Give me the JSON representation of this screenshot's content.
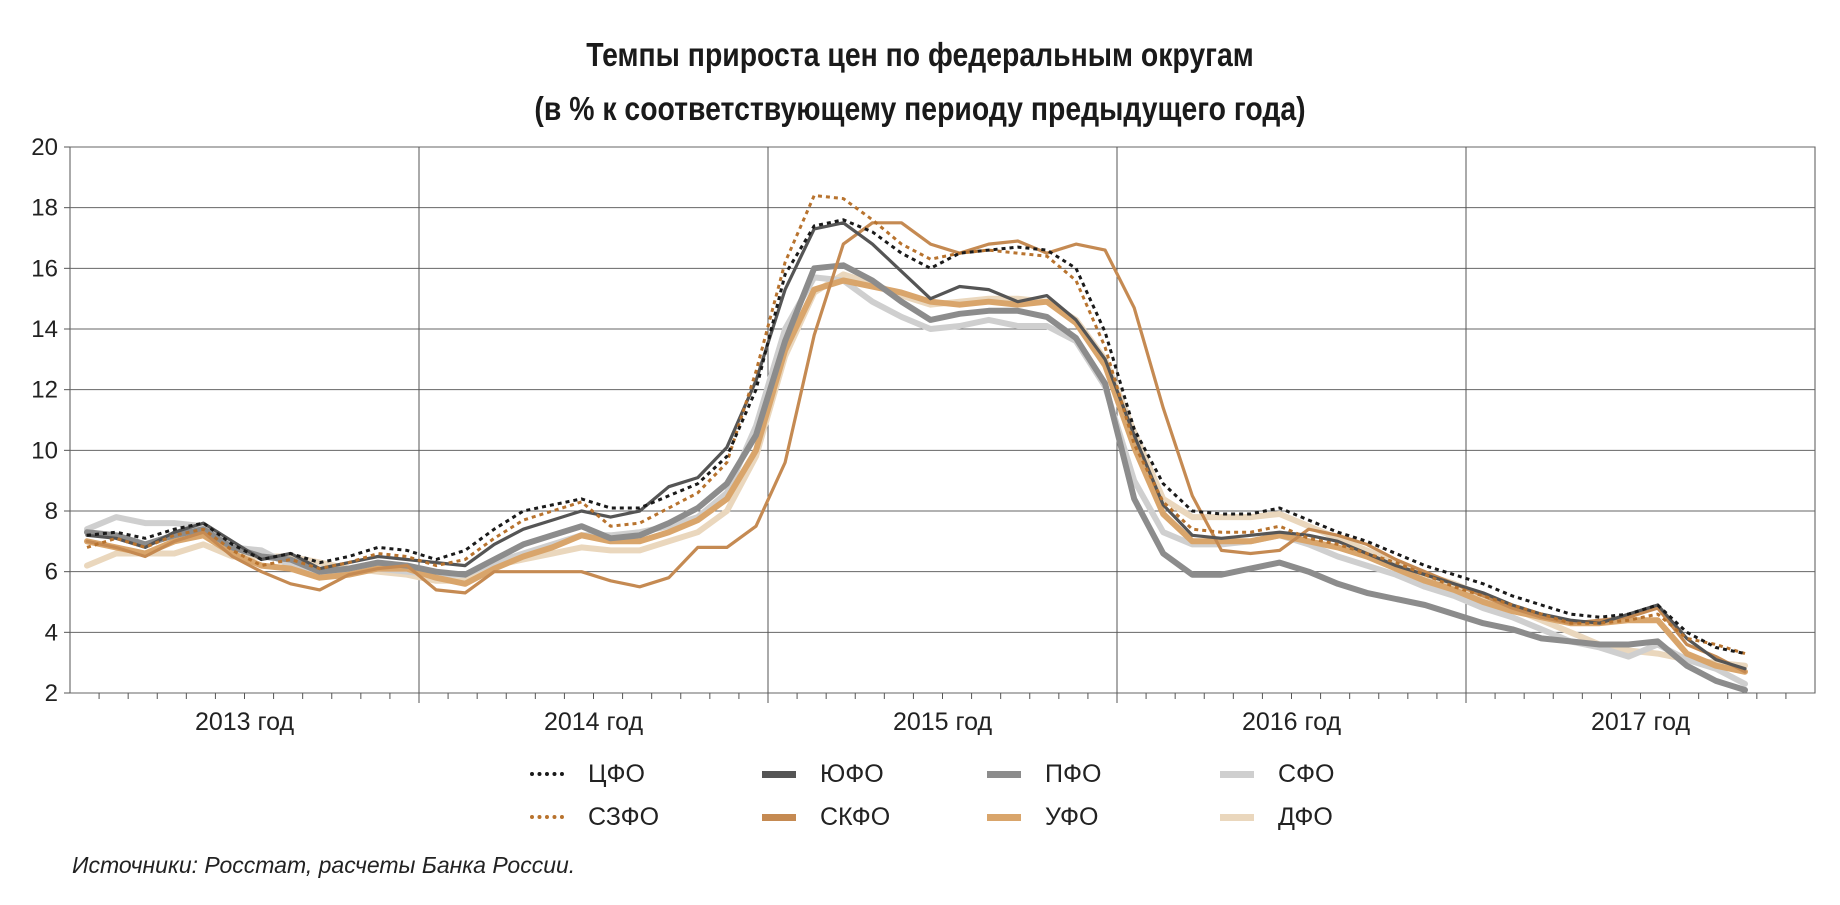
{
  "title_lines": [
    "Темпы прироста цен по федеральным округам",
    "(в % к соответствующему периоду предыдущего года)"
  ],
  "source": "Источники: Росстат, расчеты Банка России.",
  "chart_data": {
    "type": "line",
    "title": "Темпы прироста цен по федеральным округам (в % к соответствующему периоду предыдущего года)",
    "ylabel": "",
    "xlabel": "",
    "ylim": [
      2,
      20
    ],
    "y_ticks": [
      2,
      4,
      6,
      8,
      10,
      12,
      14,
      16,
      18,
      20
    ],
    "y_tick_labels": [
      "2",
      "4",
      "6",
      "8",
      "10",
      "12",
      "14",
      "16",
      "18",
      "20"
    ],
    "grid": true,
    "legend_position": "bottom",
    "x_months": [
      "2013-01",
      "2013-02",
      "2013-03",
      "2013-04",
      "2013-05",
      "2013-06",
      "2013-07",
      "2013-08",
      "2013-09",
      "2013-10",
      "2013-11",
      "2013-12",
      "2014-01",
      "2014-02",
      "2014-03",
      "2014-04",
      "2014-05",
      "2014-06",
      "2014-07",
      "2014-08",
      "2014-09",
      "2014-10",
      "2014-11",
      "2014-12",
      "2015-01",
      "2015-02",
      "2015-03",
      "2015-04",
      "2015-05",
      "2015-06",
      "2015-07",
      "2015-08",
      "2015-09",
      "2015-10",
      "2015-11",
      "2015-12",
      "2016-01",
      "2016-02",
      "2016-03",
      "2016-04",
      "2016-05",
      "2016-06",
      "2016-07",
      "2016-08",
      "2016-09",
      "2016-10",
      "2016-11",
      "2016-12",
      "2017-01",
      "2017-02",
      "2017-03",
      "2017-04",
      "2017-05",
      "2017-06",
      "2017-07",
      "2017-08",
      "2017-09",
      "2017-10"
    ],
    "year_labels": [
      "2013 год",
      "2014 год",
      "2015 год",
      "2016 год",
      "2017 год"
    ],
    "series": [
      {
        "name": "ЦФО",
        "color": "#1a1a1a",
        "style": "dotted",
        "values": [
          7.2,
          7.3,
          7.1,
          7.4,
          7.6,
          6.9,
          6.4,
          6.6,
          6.3,
          6.5,
          6.8,
          6.7,
          6.4,
          6.7,
          7.4,
          8.0,
          8.2,
          8.4,
          8.1,
          8.1,
          8.5,
          8.9,
          9.8,
          12.0,
          15.8,
          17.4,
          17.6,
          17.2,
          16.5,
          16.0,
          16.5,
          16.6,
          16.7,
          16.6,
          16.0,
          13.9,
          10.7,
          8.9,
          8.0,
          7.9,
          7.9,
          8.1,
          7.7,
          7.3,
          7.0,
          6.6,
          6.2,
          5.9,
          5.6,
          5.2,
          4.9,
          4.6,
          4.5,
          4.6,
          4.9,
          4.0,
          3.5,
          3.3
        ]
      },
      {
        "name": "СЗФО",
        "color": "#b8732e",
        "style": "dotted",
        "values": [
          6.8,
          7.1,
          6.8,
          7.2,
          7.4,
          6.7,
          6.2,
          6.4,
          6.1,
          6.3,
          6.6,
          6.5,
          6.2,
          6.4,
          7.1,
          7.7,
          8.0,
          8.3,
          7.5,
          7.6,
          8.1,
          8.6,
          9.6,
          12.6,
          16.2,
          18.4,
          18.3,
          17.6,
          16.8,
          16.3,
          16.5,
          16.6,
          16.5,
          16.4,
          15.6,
          13.4,
          10.2,
          8.3,
          7.4,
          7.3,
          7.3,
          7.5,
          7.1,
          6.9,
          6.6,
          6.3,
          5.9,
          5.5,
          5.2,
          4.9,
          4.6,
          4.3,
          4.3,
          4.4,
          4.6,
          3.8,
          3.6,
          3.3
        ]
      },
      {
        "name": "ЮФО",
        "color": "#555555",
        "style": "solid",
        "values": [
          7.2,
          7.1,
          6.8,
          7.3,
          7.6,
          7.0,
          6.4,
          6.6,
          6.1,
          6.3,
          6.5,
          6.4,
          6.3,
          6.2,
          6.9,
          7.4,
          7.7,
          8.0,
          7.8,
          8.0,
          8.8,
          9.1,
          10.1,
          12.3,
          15.3,
          17.3,
          17.5,
          16.8,
          15.9,
          15.0,
          15.4,
          15.3,
          14.9,
          15.1,
          14.3,
          13.0,
          10.5,
          8.2,
          7.2,
          7.1,
          7.2,
          7.3,
          7.2,
          7.0,
          6.6,
          6.2,
          5.9,
          5.6,
          5.3,
          4.9,
          4.6,
          4.4,
          4.3,
          4.6,
          4.9,
          3.8,
          3.1,
          2.8
        ]
      },
      {
        "name": "СКФО",
        "color": "#c58a52",
        "style": "solid",
        "values": [
          7.0,
          6.8,
          6.5,
          7.0,
          7.3,
          6.5,
          6.0,
          5.6,
          5.4,
          5.9,
          6.1,
          6.2,
          5.4,
          5.3,
          6.0,
          6.0,
          6.0,
          6.0,
          5.7,
          5.5,
          5.8,
          6.8,
          6.8,
          7.5,
          9.6,
          13.8,
          16.8,
          17.5,
          17.5,
          16.8,
          16.5,
          16.8,
          16.9,
          16.5,
          16.8,
          16.6,
          14.7,
          11.4,
          8.5,
          6.7,
          6.6,
          6.7,
          7.4,
          7.2,
          6.9,
          6.4,
          6.0,
          5.6,
          5.2,
          4.8,
          4.5,
          4.3,
          4.4,
          4.5,
          4.8,
          3.6,
          3.2,
          2.7
        ]
      },
      {
        "name": "ПФО",
        "color": "#8c8c8c",
        "style": "solid",
        "values": [
          7.3,
          7.2,
          6.9,
          7.2,
          7.4,
          6.8,
          6.5,
          6.4,
          6.0,
          6.1,
          6.3,
          6.2,
          6.0,
          5.9,
          6.4,
          6.9,
          7.2,
          7.5,
          7.1,
          7.2,
          7.6,
          8.1,
          8.9,
          10.5,
          13.6,
          16.0,
          16.1,
          15.6,
          14.9,
          14.3,
          14.5,
          14.6,
          14.6,
          14.4,
          13.7,
          12.2,
          8.4,
          6.6,
          5.9,
          5.9,
          6.1,
          6.3,
          6.0,
          5.6,
          5.3,
          5.1,
          4.9,
          4.6,
          4.3,
          4.1,
          3.8,
          3.7,
          3.6,
          3.6,
          3.7,
          2.9,
          2.4,
          2.1
        ]
      },
      {
        "name": "УФО",
        "color": "#d9a56b",
        "style": "solid",
        "values": [
          7.0,
          6.8,
          6.6,
          7.0,
          7.2,
          6.6,
          6.2,
          6.1,
          5.8,
          5.9,
          6.1,
          6.1,
          5.8,
          5.6,
          6.1,
          6.5,
          6.8,
          7.2,
          7.0,
          7.0,
          7.3,
          7.7,
          8.4,
          10.0,
          13.3,
          15.3,
          15.6,
          15.4,
          15.2,
          14.9,
          14.8,
          14.9,
          14.8,
          14.9,
          14.2,
          12.8,
          10.1,
          7.9,
          7.0,
          7.0,
          7.0,
          7.2,
          7.0,
          6.8,
          6.5,
          6.1,
          5.7,
          5.4,
          5.0,
          4.7,
          4.5,
          4.3,
          4.3,
          4.4,
          4.4,
          3.3,
          2.9,
          2.7
        ]
      },
      {
        "name": "СФО",
        "color": "#cfcfcf",
        "style": "solid",
        "values": [
          7.4,
          7.8,
          7.6,
          7.6,
          7.5,
          6.8,
          6.7,
          6.2,
          6.0,
          6.0,
          6.1,
          6.0,
          5.9,
          5.9,
          6.3,
          6.6,
          6.9,
          7.2,
          7.2,
          7.3,
          7.5,
          7.8,
          8.6,
          10.8,
          14.0,
          15.7,
          15.6,
          14.9,
          14.4,
          14.0,
          14.1,
          14.3,
          14.1,
          14.1,
          13.6,
          12.1,
          9.0,
          7.3,
          6.9,
          6.9,
          7.0,
          7.2,
          6.9,
          6.5,
          6.2,
          5.9,
          5.5,
          5.2,
          4.8,
          4.5,
          4.1,
          3.7,
          3.5,
          3.2,
          3.6,
          3.1,
          2.8,
          2.3
        ]
      },
      {
        "name": "ДФО",
        "color": "#ead7bd",
        "style": "solid",
        "values": [
          6.2,
          6.6,
          6.6,
          6.6,
          6.9,
          6.5,
          6.5,
          6.5,
          6.3,
          6.1,
          6.0,
          5.9,
          5.7,
          5.7,
          6.2,
          6.4,
          6.6,
          6.8,
          6.7,
          6.7,
          7.0,
          7.3,
          8.0,
          9.8,
          13.1,
          15.2,
          15.8,
          15.5,
          15.1,
          14.8,
          14.9,
          15.0,
          15.0,
          14.9,
          14.3,
          13.0,
          10.6,
          8.4,
          7.8,
          7.8,
          7.8,
          7.9,
          7.5,
          7.1,
          6.7,
          6.3,
          5.9,
          5.6,
          5.2,
          4.8,
          4.4,
          4.0,
          3.6,
          3.4,
          3.3,
          3.1,
          3.0,
          2.9
        ]
      }
    ]
  }
}
